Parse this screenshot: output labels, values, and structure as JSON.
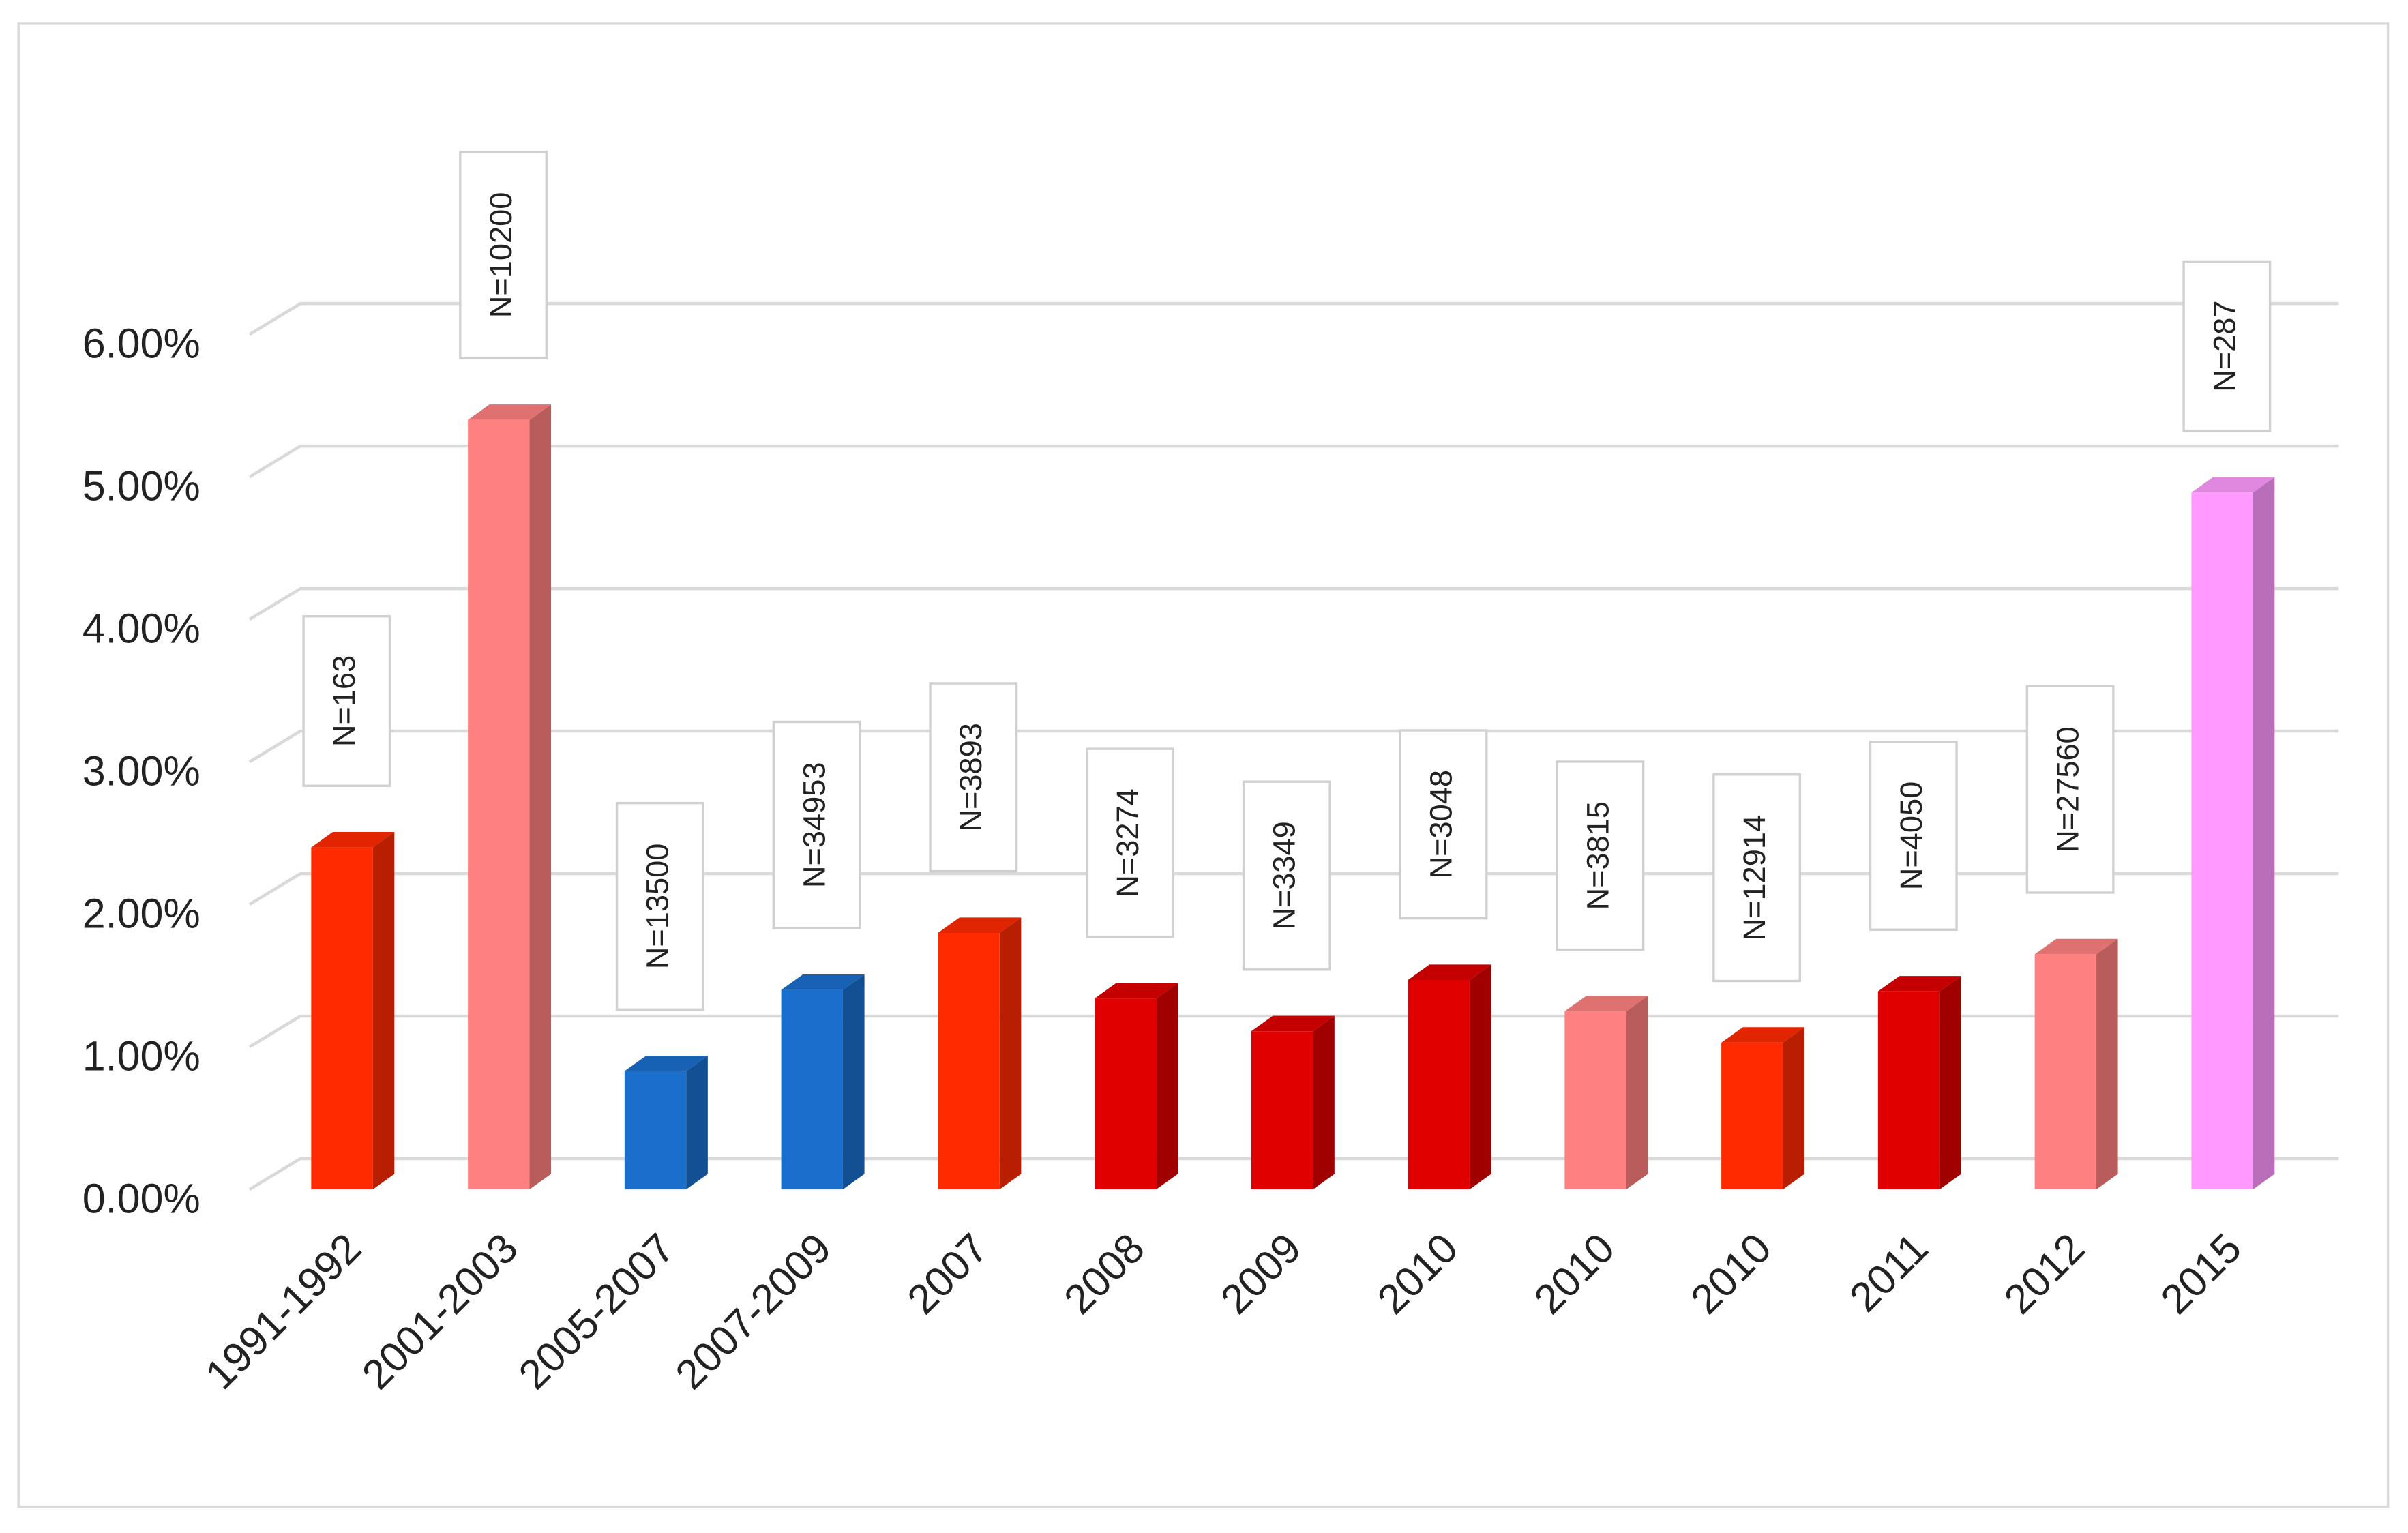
{
  "chart_data": {
    "type": "bar3d",
    "categories": [
      "1991-1992",
      "2001-2003",
      "2005-2007",
      "2007-2009",
      "2007",
      "2008",
      "2009",
      "2010",
      "2010",
      "2010",
      "2011",
      "2012",
      "2015"
    ],
    "values": [
      2.4,
      5.4,
      0.83,
      1.4,
      1.8,
      1.34,
      1.11,
      1.47,
      1.25,
      1.03,
      1.39,
      1.65,
      4.89
    ],
    "colors": [
      "#ff2a00",
      "#ff8080",
      "#1a6fcc",
      "#1a6fcc",
      "#ff2a00",
      "#e00000",
      "#e00000",
      "#e00000",
      "#ff8080",
      "#ff2a00",
      "#e00000",
      "#ff8080",
      "#ff99ff"
    ],
    "annotations": [
      "N=163",
      "N=10200",
      "N=13500",
      "N=34953",
      "N=3893",
      "N=3274",
      "N=3349",
      "N=3048",
      "N=3815",
      "N=12914",
      "N=4050",
      "N=27560",
      "N=287"
    ],
    "ylim": [
      0,
      6
    ],
    "yticks": [
      {
        "value": 0,
        "label": "0.00%"
      },
      {
        "value": 1,
        "label": "1.00%"
      },
      {
        "value": 2,
        "label": "2.00%"
      },
      {
        "value": 3,
        "label": "3.00%"
      },
      {
        "value": 4,
        "label": "4.00%"
      },
      {
        "value": 5,
        "label": "5.00%"
      },
      {
        "value": 6,
        "label": "6.00%"
      }
    ],
    "grid": true
  }
}
